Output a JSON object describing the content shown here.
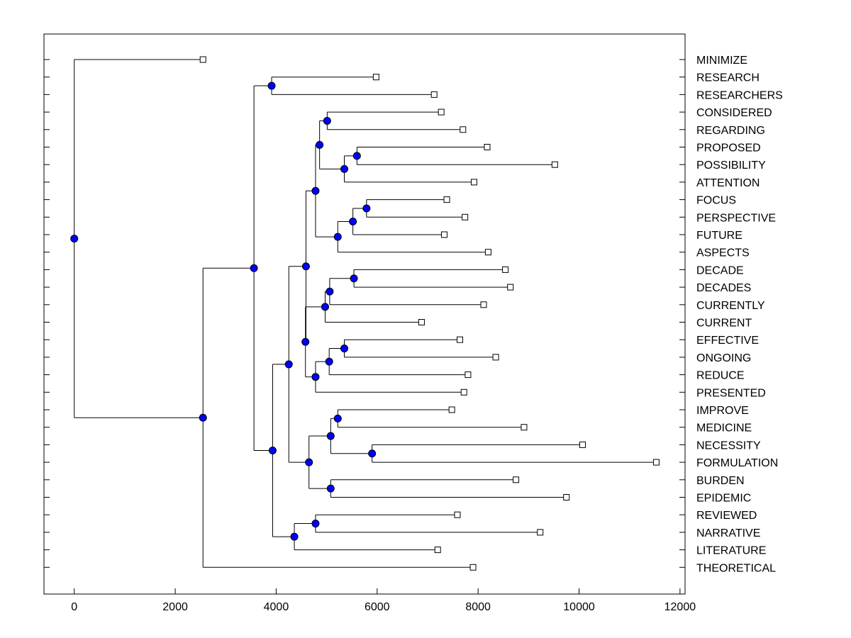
{
  "chart_data": {
    "type": "dendrogram",
    "orientation": "horizontal",
    "xlim": [
      -600,
      12100
    ],
    "xticks": [
      0,
      2000,
      4000,
      6000,
      8000,
      10000,
      12000
    ],
    "grid": false,
    "colors": {
      "node": "#0000ff",
      "line": "#000000",
      "leaf_fill": "#ffffff"
    },
    "leaves": [
      {
        "label": "MINIMIZE",
        "value": 2550
      },
      {
        "label": "RESEARCH",
        "value": 5980
      },
      {
        "label": "RESEARCHERS",
        "value": 7130
      },
      {
        "label": "CONSIDERED",
        "value": 7270
      },
      {
        "label": "REGARDING",
        "value": 7700
      },
      {
        "label": "PROPOSED",
        "value": 8180
      },
      {
        "label": "POSSIBILITY",
        "value": 9520
      },
      {
        "label": "ATTENTION",
        "value": 7920
      },
      {
        "label": "FOCUS",
        "value": 7380
      },
      {
        "label": "PERSPECTIVE",
        "value": 7740
      },
      {
        "label": "FUTURE",
        "value": 7330
      },
      {
        "label": "ASPECTS",
        "value": 8200
      },
      {
        "label": "DECADE",
        "value": 8540
      },
      {
        "label": "DECADES",
        "value": 8640
      },
      {
        "label": "CURRENTLY",
        "value": 8110
      },
      {
        "label": "CURRENT",
        "value": 6880
      },
      {
        "label": "EFFECTIVE",
        "value": 7640
      },
      {
        "label": "ONGOING",
        "value": 8350
      },
      {
        "label": "REDUCE",
        "value": 7800
      },
      {
        "label": "PRESENTED",
        "value": 7720
      },
      {
        "label": "IMPROVE",
        "value": 7480
      },
      {
        "label": "MEDICINE",
        "value": 8910
      },
      {
        "label": "NECESSITY",
        "value": 10070
      },
      {
        "label": "FORMULATION",
        "value": 11530
      },
      {
        "label": "BURDEN",
        "value": 8750
      },
      {
        "label": "EPIDEMIC",
        "value": 9750
      },
      {
        "label": "REVIEWED",
        "value": 7590
      },
      {
        "label": "NARRATIVE",
        "value": 9230
      },
      {
        "label": "LITERATURE",
        "value": 7200
      },
      {
        "label": "THEORETICAL",
        "value": 7900
      }
    ],
    "merges": [
      {
        "id": "n1",
        "value": 3910,
        "children": [
          "RESEARCH",
          "RESEARCHERS"
        ]
      },
      {
        "id": "n2",
        "value": 5010,
        "children": [
          "CONSIDERED",
          "REGARDING"
        ]
      },
      {
        "id": "n3",
        "value": 5600,
        "children": [
          "PROPOSED",
          "POSSIBILITY"
        ]
      },
      {
        "id": "n4",
        "value": 5350,
        "children": [
          "n3",
          "ATTENTION"
        ]
      },
      {
        "id": "n5",
        "value": 4860,
        "children": [
          "n2",
          "n4"
        ]
      },
      {
        "id": "n6",
        "value": 5790,
        "children": [
          "FOCUS",
          "PERSPECTIVE"
        ]
      },
      {
        "id": "n7",
        "value": 5520,
        "children": [
          "n6",
          "FUTURE"
        ]
      },
      {
        "id": "n8",
        "value": 5220,
        "children": [
          "n7",
          "ASPECTS"
        ]
      },
      {
        "id": "n9",
        "value": 4780,
        "children": [
          "n5",
          "n8"
        ]
      },
      {
        "id": "n10",
        "value": 5540,
        "children": [
          "DECADE",
          "DECADES"
        ]
      },
      {
        "id": "n11",
        "value": 5060,
        "children": [
          "n10",
          "CURRENTLY"
        ]
      },
      {
        "id": "n12",
        "value": 4970,
        "children": [
          "n11",
          "CURRENT"
        ]
      },
      {
        "id": "n13",
        "value": 5350,
        "children": [
          "EFFECTIVE",
          "ONGOING"
        ]
      },
      {
        "id": "n14",
        "value": 5050,
        "children": [
          "n13",
          "REDUCE"
        ]
      },
      {
        "id": "n15",
        "value": 4780,
        "children": [
          "n14",
          "PRESENTED"
        ]
      },
      {
        "id": "n16",
        "value": 4580,
        "children": [
          "n12",
          "n15"
        ]
      },
      {
        "id": "n17",
        "value": 4590,
        "children": [
          "n9",
          "n16"
        ]
      },
      {
        "id": "n18",
        "value": 5220,
        "children": [
          "IMPROVE",
          "MEDICINE"
        ]
      },
      {
        "id": "n19",
        "value": 5900,
        "children": [
          "NECESSITY",
          "FORMULATION"
        ]
      },
      {
        "id": "n20",
        "value": 5080,
        "children": [
          "n18",
          "n19"
        ]
      },
      {
        "id": "n21",
        "value": 5080,
        "children": [
          "BURDEN",
          "EPIDEMIC"
        ]
      },
      {
        "id": "n22",
        "value": 4650,
        "children": [
          "n20",
          "n21"
        ]
      },
      {
        "id": "n23",
        "value": 4250,
        "children": [
          "n17",
          "n22"
        ]
      },
      {
        "id": "n24",
        "value": 4780,
        "children": [
          "REVIEWED",
          "NARRATIVE"
        ]
      },
      {
        "id": "n25",
        "value": 4360,
        "children": [
          "n24",
          "LITERATURE"
        ]
      },
      {
        "id": "n26",
        "value": 3930,
        "children": [
          "n23",
          "n25"
        ]
      },
      {
        "id": "n27",
        "value": 3560,
        "children": [
          "n1",
          "n26"
        ]
      },
      {
        "id": "n28",
        "value": 2550,
        "children": [
          "n27",
          "THEORETICAL"
        ]
      },
      {
        "id": "n29",
        "value": 0,
        "children": [
          "MINIMIZE",
          "n28"
        ]
      }
    ]
  }
}
